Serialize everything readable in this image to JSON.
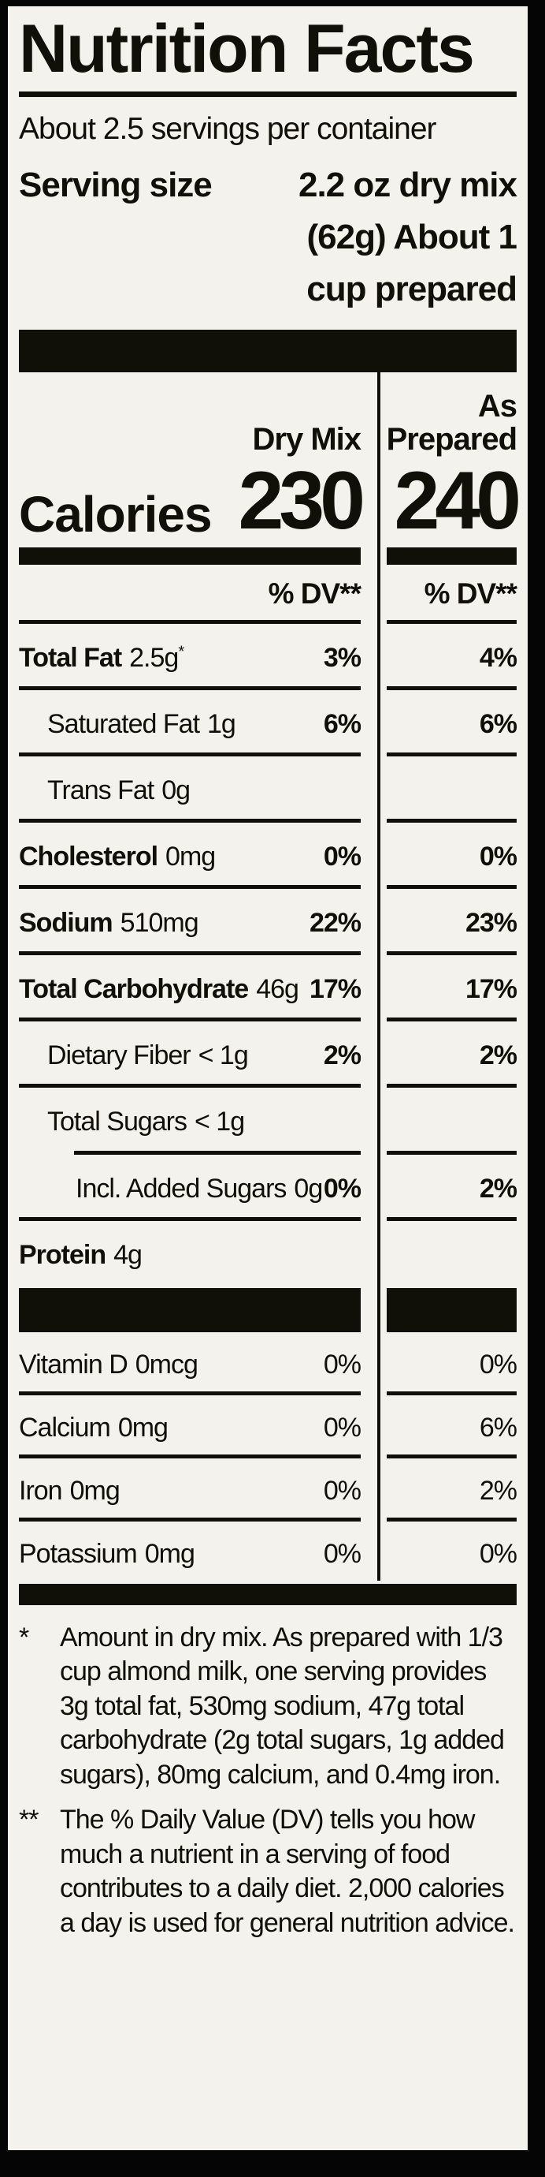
{
  "label": {
    "title": "Nutrition Facts",
    "servings_per_container": "About 2.5 servings per container",
    "serving_size": {
      "label": "Serving size",
      "line1": "2.2 oz dry mix",
      "line2": "(62g) About 1",
      "line3": "cup prepared"
    },
    "columns": {
      "dry": "Dry Mix",
      "prepared_line1": "As",
      "prepared_line2": "Prepared"
    },
    "calories": {
      "label": "Calories",
      "dry": "230",
      "prepared": "240"
    },
    "dv_header": "% DV**",
    "nutrients": [
      {
        "name": "Total Fat",
        "amount": "2.5g",
        "amount_sup": "*",
        "dry_dv": "3%",
        "prep_dv": "4%"
      },
      {
        "name": "Saturated Fat",
        "amount": "1g",
        "dry_dv": "6%",
        "prep_dv": "6%"
      },
      {
        "name": "Trans Fat",
        "amount": "0g",
        "dry_dv": "",
        "prep_dv": ""
      },
      {
        "name": "Cholesterol",
        "amount": "0mg",
        "dry_dv": "0%",
        "prep_dv": "0%"
      },
      {
        "name": "Sodium",
        "amount": "510mg",
        "dry_dv": "22%",
        "prep_dv": "23%"
      },
      {
        "name": "Total Carbohydrate",
        "amount": "46g",
        "dry_dv": "17%",
        "prep_dv": "17%"
      },
      {
        "name": "Dietary Fiber",
        "amount": "< 1g",
        "dry_dv": "2%",
        "prep_dv": "2%"
      },
      {
        "name": "Total Sugars",
        "amount": "< 1g",
        "dry_dv": "",
        "prep_dv": ""
      },
      {
        "name": "Incl. Added Sugars",
        "amount": "0g",
        "dry_dv": "0%",
        "prep_dv": "2%"
      },
      {
        "name": "Protein",
        "amount": "4g",
        "dry_dv": "",
        "prep_dv": ""
      }
    ],
    "vitamins": [
      {
        "name": "Vitamin D",
        "amount": "0mcg",
        "dry_dv": "0%",
        "prep_dv": "0%"
      },
      {
        "name": "Calcium",
        "amount": "0mg",
        "dry_dv": "0%",
        "prep_dv": "6%"
      },
      {
        "name": "Iron",
        "amount": "0mg",
        "dry_dv": "0%",
        "prep_dv": "2%"
      },
      {
        "name": "Potassium",
        "amount": "0mg",
        "dry_dv": "0%",
        "prep_dv": "0%"
      }
    ],
    "footnotes": [
      {
        "marker": "*",
        "text": "Amount in dry mix. As prepared with 1/3 cup almond milk, one serving provides 3g total fat, 530mg sodium, 47g total carbohydrate (2g total sugars, 1g added sugars), 80mg calcium, and 0.4mg iron."
      },
      {
        "marker": "**",
        "text": "The % Daily Value (DV) tells you how much a nutrient in a serving of food contributes to a daily diet. 2,000 calories a day is used for general nutrition advice."
      }
    ],
    "colors": {
      "paper": "#f4f2ec",
      "ink": "#111008"
    }
  }
}
